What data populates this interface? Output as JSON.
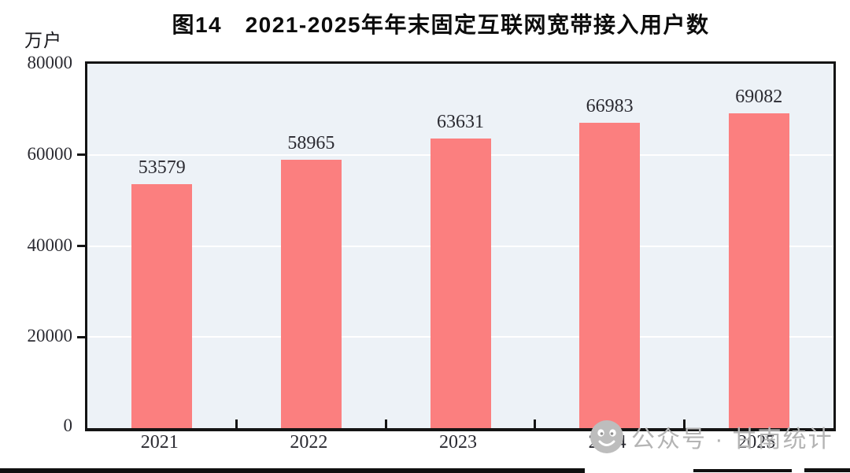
{
  "page": {
    "unit_label": "万户",
    "title": "图14　2021-2025年年末固定互联网宽带接入用户数",
    "watermark": {
      "icon": "wechat-account-face-icon",
      "text": "公众号 · 甘南统计"
    }
  },
  "colors": {
    "bar": "#fb7f7f",
    "plot_background": "#edf2f7",
    "gridline": "#ffffff",
    "axis": "#141414",
    "text": "#2a2a31",
    "watermark": "#b4b4b4"
  },
  "chart_data": {
    "type": "bar",
    "title": "图14　2021-2025年年末固定互联网宽带接入用户数",
    "categories": [
      "2021",
      "2022",
      "2023",
      "2024",
      "2025"
    ],
    "values": [
      53579,
      58965,
      63631,
      66983,
      69082
    ],
    "xlabel": "",
    "ylabel": "万户",
    "ylim": [
      0,
      80000
    ],
    "yticks": [
      0,
      20000,
      40000,
      60000,
      80000
    ],
    "grid": true,
    "gridlines_at": [
      20000,
      40000,
      60000
    ],
    "legend": "none",
    "bar_labels_shown": true
  }
}
